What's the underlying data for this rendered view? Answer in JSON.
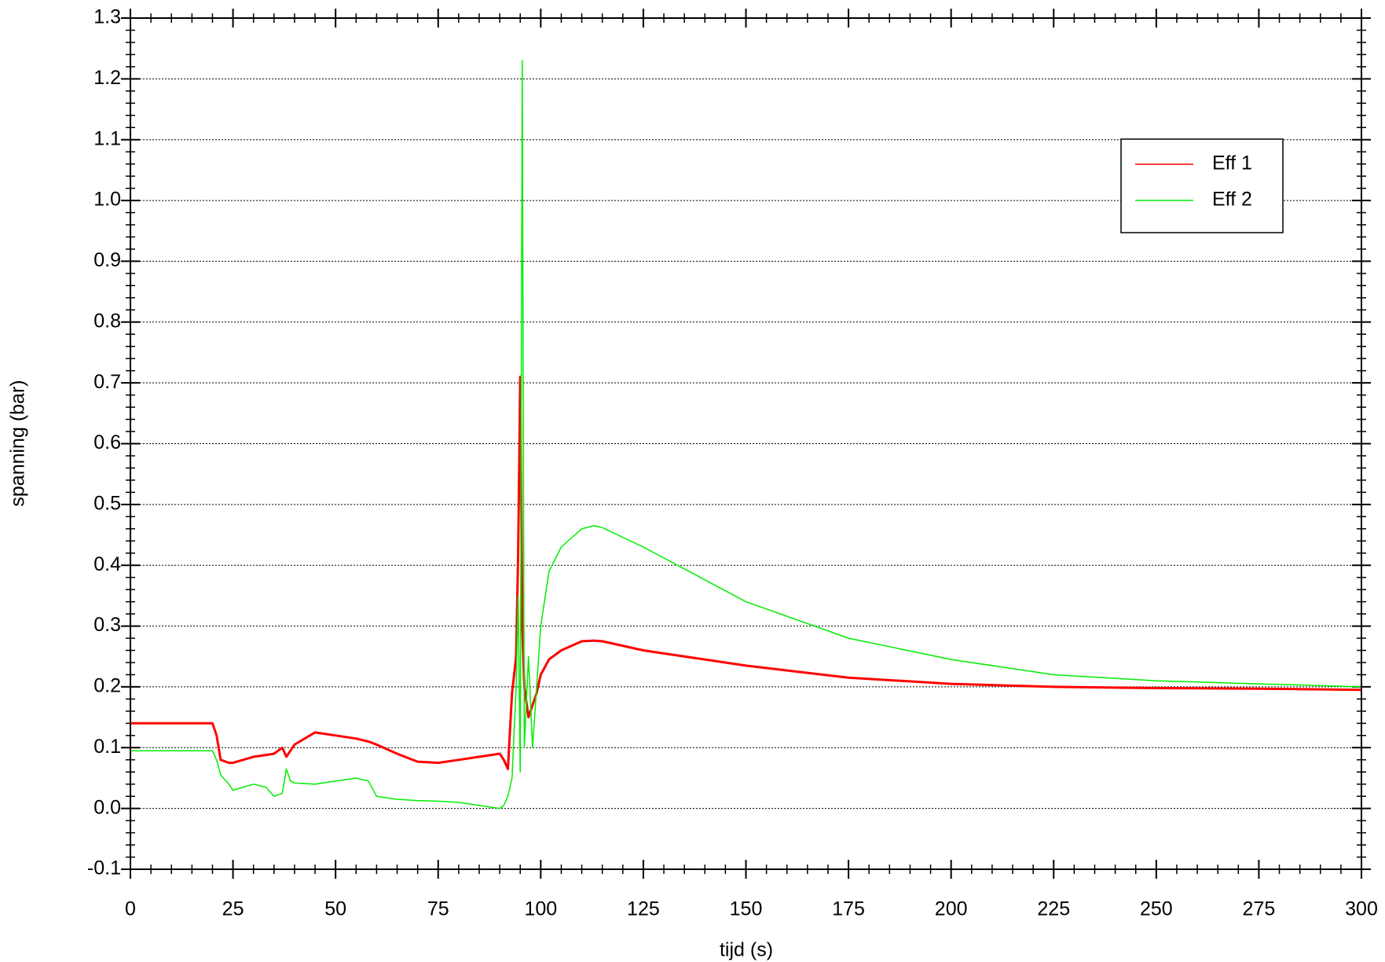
{
  "chart_data": {
    "type": "line",
    "xlabel": "tijd (s)",
    "ylabel": "spanning (bar)",
    "x": [
      0,
      20,
      21,
      22,
      24,
      25,
      30,
      33,
      35,
      37,
      38,
      39,
      40,
      45,
      50,
      55,
      58,
      60,
      65,
      70,
      75,
      80,
      85,
      90,
      91,
      92,
      93,
      94,
      94.5,
      95,
      95.5,
      96,
      97,
      98,
      99,
      100,
      102,
      105,
      110,
      113,
      115,
      125,
      150,
      175,
      200,
      225,
      250,
      275,
      300
    ],
    "series": [
      {
        "name": "Eff 1",
        "color": "#ff0000",
        "values": [
          0.14,
          0.14,
          0.12,
          0.08,
          0.075,
          0.075,
          0.085,
          0.088,
          0.09,
          0.1,
          0.085,
          0.095,
          0.105,
          0.125,
          0.12,
          0.115,
          0.11,
          0.105,
          0.09,
          0.077,
          0.075,
          0.08,
          0.085,
          0.09,
          0.08,
          0.065,
          0.19,
          0.25,
          0.42,
          0.71,
          0.3,
          0.2,
          0.15,
          0.17,
          0.19,
          0.22,
          0.245,
          0.26,
          0.275,
          0.276,
          0.275,
          0.26,
          0.235,
          0.215,
          0.205,
          0.2,
          0.198,
          0.197,
          0.195
        ]
      },
      {
        "name": "Eff 2",
        "color": "#00ee00",
        "values": [
          0.095,
          0.095,
          0.08,
          0.055,
          0.04,
          0.03,
          0.04,
          0.035,
          0.02,
          0.025,
          0.065,
          0.045,
          0.042,
          0.04,
          0.045,
          0.05,
          0.045,
          0.02,
          0.015,
          0.013,
          0.012,
          0.01,
          0.005,
          0,
          0.005,
          0.02,
          0.05,
          0.2,
          0.35,
          0.06,
          1.23,
          0.1,
          0.25,
          0.1,
          0.2,
          0.3,
          0.39,
          0.43,
          0.46,
          0.465,
          0.462,
          0.43,
          0.34,
          0.28,
          0.245,
          0.22,
          0.21,
          0.205,
          0.2
        ]
      }
    ],
    "xlim": [
      0,
      300
    ],
    "xticks": [
      0,
      25,
      50,
      75,
      100,
      125,
      150,
      175,
      200,
      225,
      250,
      275,
      300
    ],
    "ylim": [
      -0.1,
      1.3
    ],
    "yticks": [
      -0.1,
      {
        "value": 0,
        "label": "0.0"
      },
      0.1,
      0.2,
      0.3,
      0.4,
      0.5,
      0.6,
      0.7,
      0.8,
      0.9,
      {
        "value": 1,
        "label": "1.0"
      },
      1.1,
      1.2,
      1.3
    ],
    "grid": true,
    "legend": "upper right"
  }
}
